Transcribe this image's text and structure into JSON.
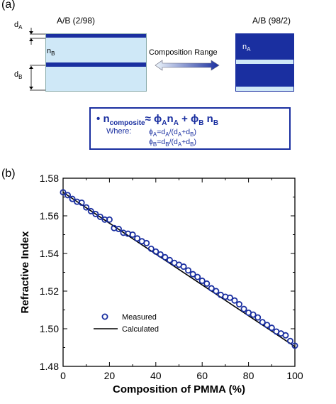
{
  "panel_a": {
    "label": "(a)",
    "left_title": "A/B (2/98)",
    "right_title": "A/B (98/2)",
    "dA_label": "d",
    "dA_sub": "A",
    "dB_label": "d",
    "dB_sub": "B",
    "nB_label": "n",
    "nB_sub": "B",
    "nA_label": "n",
    "nA_sub": "A",
    "arrow_label": "Composition Range",
    "colors": {
      "layer_dark": "#1a2fa0",
      "layer_light": "#cfe8f7",
      "box_border": "#1a2fa0"
    },
    "equation": {
      "bullet": "•",
      "lhs": "n",
      "lhs_sub": "composite",
      "rhs": "≈ ϕ",
      "rhs_a_sub": "A",
      "rhs_n": "n",
      "rhs_na_sub": "A",
      "plus": "+ ϕ",
      "rhs_b_sub": "B",
      "rhs_n2": " n",
      "rhs_nb_sub": "B",
      "where": "Where:",
      "phiA_text": "ϕ",
      "phiA_sub": "A",
      "phiA_rest": "=d",
      "phiA_rest_sub": "A",
      "phiA_tail": "/(d",
      "phiA_tail_sub1": "A",
      "phiA_plus": "+d",
      "phiA_tail_sub2": "B",
      "phiA_close": ")",
      "phiB_text": "ϕ",
      "phiB_sub": "B",
      "phiB_rest": "=d",
      "phiB_rest_sub": "B",
      "phiB_tail": "/(d",
      "phiB_tail_sub1": "A",
      "phiB_plus": "+d",
      "phiB_tail_sub2": "B",
      "phiB_close": ")"
    }
  },
  "panel_b": {
    "label": "(b)"
  },
  "chart_data": {
    "type": "scatter",
    "xlabel": "Composition of PMMA (%)",
    "ylabel": "Refractive Index",
    "xlim": [
      0,
      100
    ],
    "ylim": [
      1.48,
      1.58
    ],
    "xticks": [
      "0",
      "20",
      "40",
      "60",
      "80",
      "100"
    ],
    "yticks": [
      "1.48",
      "1.50",
      "1.52",
      "1.54",
      "1.56",
      "1.58"
    ],
    "legend": {
      "placement": "bottom-left",
      "entries": [
        "Measured",
        "Calculated"
      ]
    },
    "grid": false,
    "series": [
      {
        "name": "Measured",
        "marker": "open-circle",
        "color": "#1a2fa0",
        "x": [
          0,
          2,
          4,
          6,
          8,
          10,
          12,
          14,
          16,
          18,
          20,
          22,
          24,
          26,
          28,
          30,
          32,
          34,
          36,
          38,
          40,
          42,
          44,
          46,
          48,
          50,
          52,
          54,
          56,
          58,
          60,
          62,
          64,
          66,
          68,
          70,
          72,
          74,
          76,
          78,
          80,
          82,
          84,
          86,
          88,
          90,
          92,
          94,
          96,
          98,
          100
        ],
        "y": [
          1.5725,
          1.571,
          1.569,
          1.5675,
          1.567,
          1.5645,
          1.5625,
          1.561,
          1.5595,
          1.558,
          1.558,
          1.5535,
          1.553,
          1.551,
          1.5505,
          1.55,
          1.548,
          1.5465,
          1.5455,
          1.5425,
          1.541,
          1.5395,
          1.538,
          1.5365,
          1.535,
          1.534,
          1.533,
          1.531,
          1.529,
          1.5275,
          1.5255,
          1.524,
          1.5215,
          1.52,
          1.518,
          1.517,
          1.5165,
          1.515,
          1.513,
          1.5105,
          1.5085,
          1.5075,
          1.506,
          1.5035,
          1.502,
          1.5005,
          1.4985,
          1.4975,
          1.4965,
          1.4935,
          1.491
        ]
      },
      {
        "name": "Calculated",
        "marker": "line",
        "color": "#000000",
        "x": [
          0,
          100
        ],
        "y": [
          1.5725,
          1.4905
        ]
      }
    ]
  }
}
